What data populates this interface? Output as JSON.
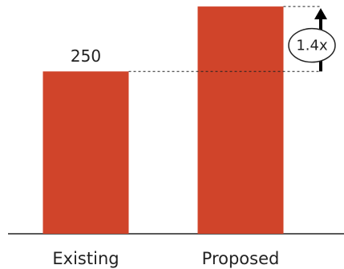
{
  "chart_data": {
    "type": "bar",
    "categories": [
      "Existing",
      "Proposed"
    ],
    "values": [
      250,
      350
    ],
    "data_labels": [
      "250",
      ""
    ],
    "ratio_annotation": "1.4x",
    "ylim": [
      0,
      360
    ],
    "grid": false,
    "legend": "none",
    "bar_color": "#d0442a",
    "axis_color": "#222222"
  }
}
